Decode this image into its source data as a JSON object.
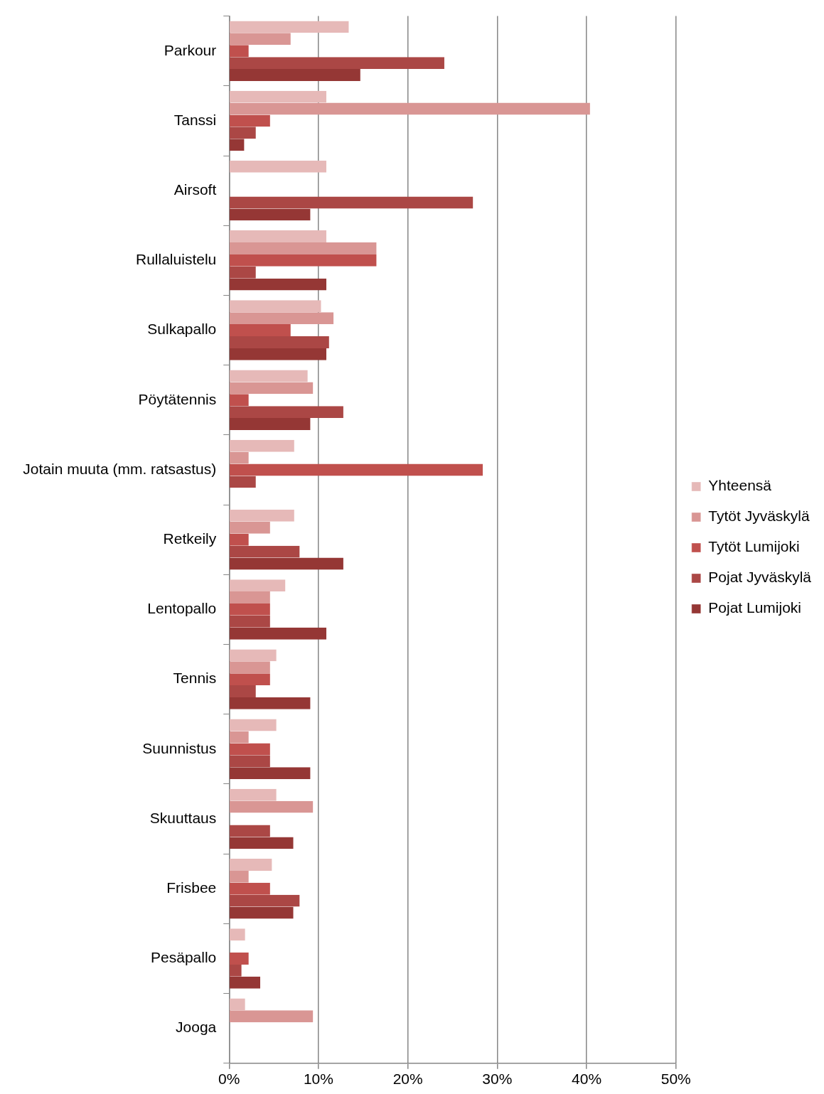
{
  "chart_data": {
    "type": "bar",
    "orientation": "horizontal",
    "categories": [
      "Parkour",
      "Tanssi",
      "Airsoft",
      "Rullaluistelu",
      "Sulkapallo",
      "Pöytätennis",
      "Jotain muuta (mm. ratsastus)",
      "Retkeily",
      "Lentopallo",
      "Tennis",
      "Suunnistus",
      "Skuuttaus",
      "Frisbee",
      "Pesäpallo",
      "Jooga"
    ],
    "series": [
      {
        "name": "Yhteensä",
        "color": "#e6b9b8",
        "values": [
          13.5,
          11.0,
          11.0,
          11.0,
          10.4,
          8.9,
          7.4,
          7.4,
          6.4,
          5.4,
          5.4,
          5.4,
          4.9,
          1.9,
          1.9
        ]
      },
      {
        "name": "Tytöt Jyväskylä",
        "color": "#d99694",
        "values": [
          7.0,
          40.5,
          0,
          16.6,
          11.8,
          9.5,
          2.3,
          4.7,
          4.7,
          4.7,
          2.3,
          9.5,
          2.3,
          0,
          9.5
        ]
      },
      {
        "name": "Tytöt Lumijoki",
        "color": "#c0504d",
        "values": [
          2.3,
          4.7,
          0,
          16.6,
          7.0,
          2.3,
          28.5,
          2.3,
          4.7,
          4.7,
          4.7,
          0,
          4.7,
          2.3,
          0
        ]
      },
      {
        "name": "Pojat Jyväskylä",
        "color": "#ab4745",
        "values": [
          24.2,
          3.1,
          27.4,
          3.1,
          11.3,
          12.9,
          3.1,
          8.0,
          4.7,
          3.1,
          4.7,
          4.7,
          8.0,
          1.5,
          0
        ]
      },
      {
        "name": "Pojat Lumijoki",
        "color": "#953735",
        "values": [
          14.8,
          1.8,
          9.2,
          11.0,
          11.0,
          9.2,
          0,
          12.9,
          11.0,
          9.2,
          9.2,
          7.3,
          7.3,
          3.6,
          0
        ]
      }
    ],
    "xlim": [
      0,
      50
    ],
    "xticks": [
      {
        "value": 0,
        "label": "0%"
      },
      {
        "value": 10,
        "label": "10%"
      },
      {
        "value": 20,
        "label": "20%"
      },
      {
        "value": 30,
        "label": "30%"
      },
      {
        "value": 40,
        "label": "40%"
      },
      {
        "value": 50,
        "label": "50%"
      }
    ],
    "grid": "x",
    "legend": "right"
  }
}
